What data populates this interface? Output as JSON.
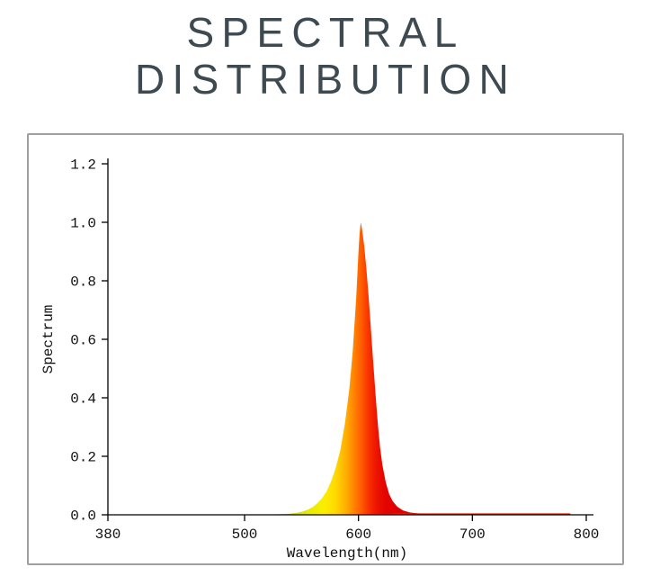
{
  "chart_data": {
    "type": "area",
    "title": "SPECTRAL DISTRIBUTION",
    "xlabel": "Wavelength(nm)",
    "ylabel": "Spectrum",
    "xlim": [
      380,
      800
    ],
    "ylim": [
      0,
      1.2
    ],
    "x_ticks": [
      380,
      500,
      600,
      700,
      800
    ],
    "y_ticks": [
      0.0,
      0.2,
      0.4,
      0.6,
      0.8,
      1.0,
      1.2
    ],
    "grid": false,
    "legend": "none",
    "series": [
      {
        "name": "spectrum",
        "x": [
          380,
          460,
          510,
          530,
          540,
          546,
          551,
          556,
          560,
          564,
          568,
          572,
          576,
          580,
          584,
          588,
          592,
          595,
          598,
          600,
          601,
          602,
          603,
          605,
          607,
          609,
          611,
          613,
          615,
          617,
          619,
          621,
          624,
          627,
          630,
          634,
          639,
          645,
          652,
          662,
          680,
          710,
          750,
          800
        ],
        "y": [
          0,
          0,
          0.001,
          0.002,
          0.004,
          0.007,
          0.011,
          0.018,
          0.027,
          0.04,
          0.057,
          0.08,
          0.115,
          0.16,
          0.22,
          0.31,
          0.43,
          0.56,
          0.74,
          0.9,
          0.96,
          1.0,
          0.98,
          0.92,
          0.84,
          0.74,
          0.63,
          0.52,
          0.41,
          0.31,
          0.23,
          0.17,
          0.11,
          0.07,
          0.047,
          0.028,
          0.015,
          0.008,
          0.005,
          0.003,
          0.002,
          0.002,
          0.001,
          0
        ]
      }
    ],
    "peak_wavelength_nm": 602,
    "peak_value": 1.0,
    "gradient": {
      "x_from": 540,
      "x_to": 640,
      "stops": [
        {
          "wavelength": 545,
          "color": "#cde300"
        },
        {
          "wavelength": 558,
          "color": "#e9ec00"
        },
        {
          "wavelength": 570,
          "color": "#fcee00"
        },
        {
          "wavelength": 580,
          "color": "#ffd800"
        },
        {
          "wavelength": 589,
          "color": "#ffae00"
        },
        {
          "wavelength": 596,
          "color": "#ff8400"
        },
        {
          "wavelength": 602,
          "color": "#ff5f00"
        },
        {
          "wavelength": 608,
          "color": "#fa3700"
        },
        {
          "wavelength": 615,
          "color": "#ee1600"
        },
        {
          "wavelength": 623,
          "color": "#e40500"
        },
        {
          "wavelength": 640,
          "color": "#dc0000"
        }
      ]
    },
    "baseline_tail": {
      "x_from": 630,
      "x_to": 786,
      "color": "#e52500"
    }
  },
  "style": {
    "title_color": "#3e4a52",
    "card_border_color": "#9f9f9f",
    "axis_color": "#000000",
    "tick_label_color": "#111111"
  }
}
